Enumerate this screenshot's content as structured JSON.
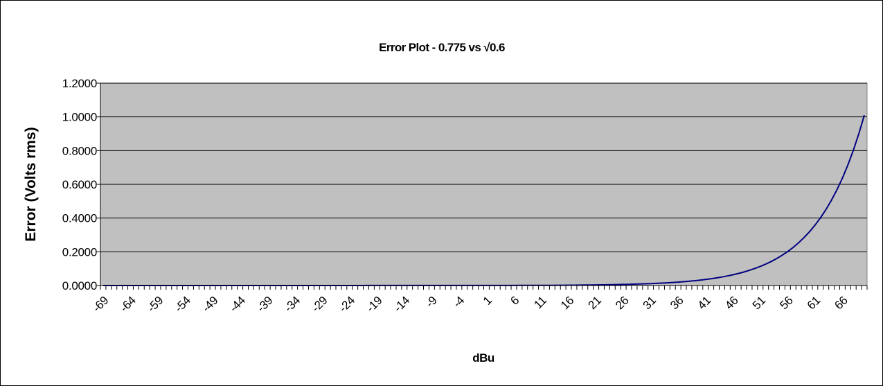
{
  "chart_data": {
    "type": "line",
    "title": "Error Plot - 0.775 vs √0.6",
    "xlabel": "dBu",
    "ylabel": "Error (Volts rms)",
    "x_start": -69,
    "x_end": 70,
    "x_step": 1,
    "x_tick_labels": [
      "-69",
      "-64",
      "-59",
      "-54",
      "-49",
      "-44",
      "-39",
      "-34",
      "-29",
      "-24",
      "-19",
      "-14",
      "-9",
      "-4",
      "1",
      "6",
      "11",
      "16",
      "21",
      "26",
      "31",
      "36",
      "41",
      "46",
      "51",
      "56",
      "61",
      "66"
    ],
    "y_ticks": [
      "0.0000",
      "0.2000",
      "0.4000",
      "0.6000",
      "0.8000",
      "1.0000",
      "1.2000"
    ],
    "ylim": [
      0,
      1.2
    ],
    "grid": true,
    "legend": "none",
    "series": [
      {
        "color": "#000080",
        "values_by_dBu": [
          {
            "x": -69,
            "y": 0.0
          },
          {
            "x": 0,
            "y": 0.0003
          },
          {
            "x": 11,
            "y": 0.0011
          },
          {
            "x": 21,
            "y": 0.0036
          },
          {
            "x": 31,
            "y": 0.0113
          },
          {
            "x": 36,
            "y": 0.0202
          },
          {
            "x": 41,
            "y": 0.0358
          },
          {
            "x": 46,
            "y": 0.0637
          },
          {
            "x": 51,
            "y": 0.1133
          },
          {
            "x": 56,
            "y": 0.2015
          },
          {
            "x": 61,
            "y": 0.3583
          },
          {
            "x": 66,
            "y": 0.6371
          },
          {
            "x": 70,
            "y": 1.01
          }
        ]
      }
    ]
  },
  "colors": {
    "plot_background": "#c0c0c0",
    "gridline": "#000000",
    "series_line": "#000080"
  }
}
